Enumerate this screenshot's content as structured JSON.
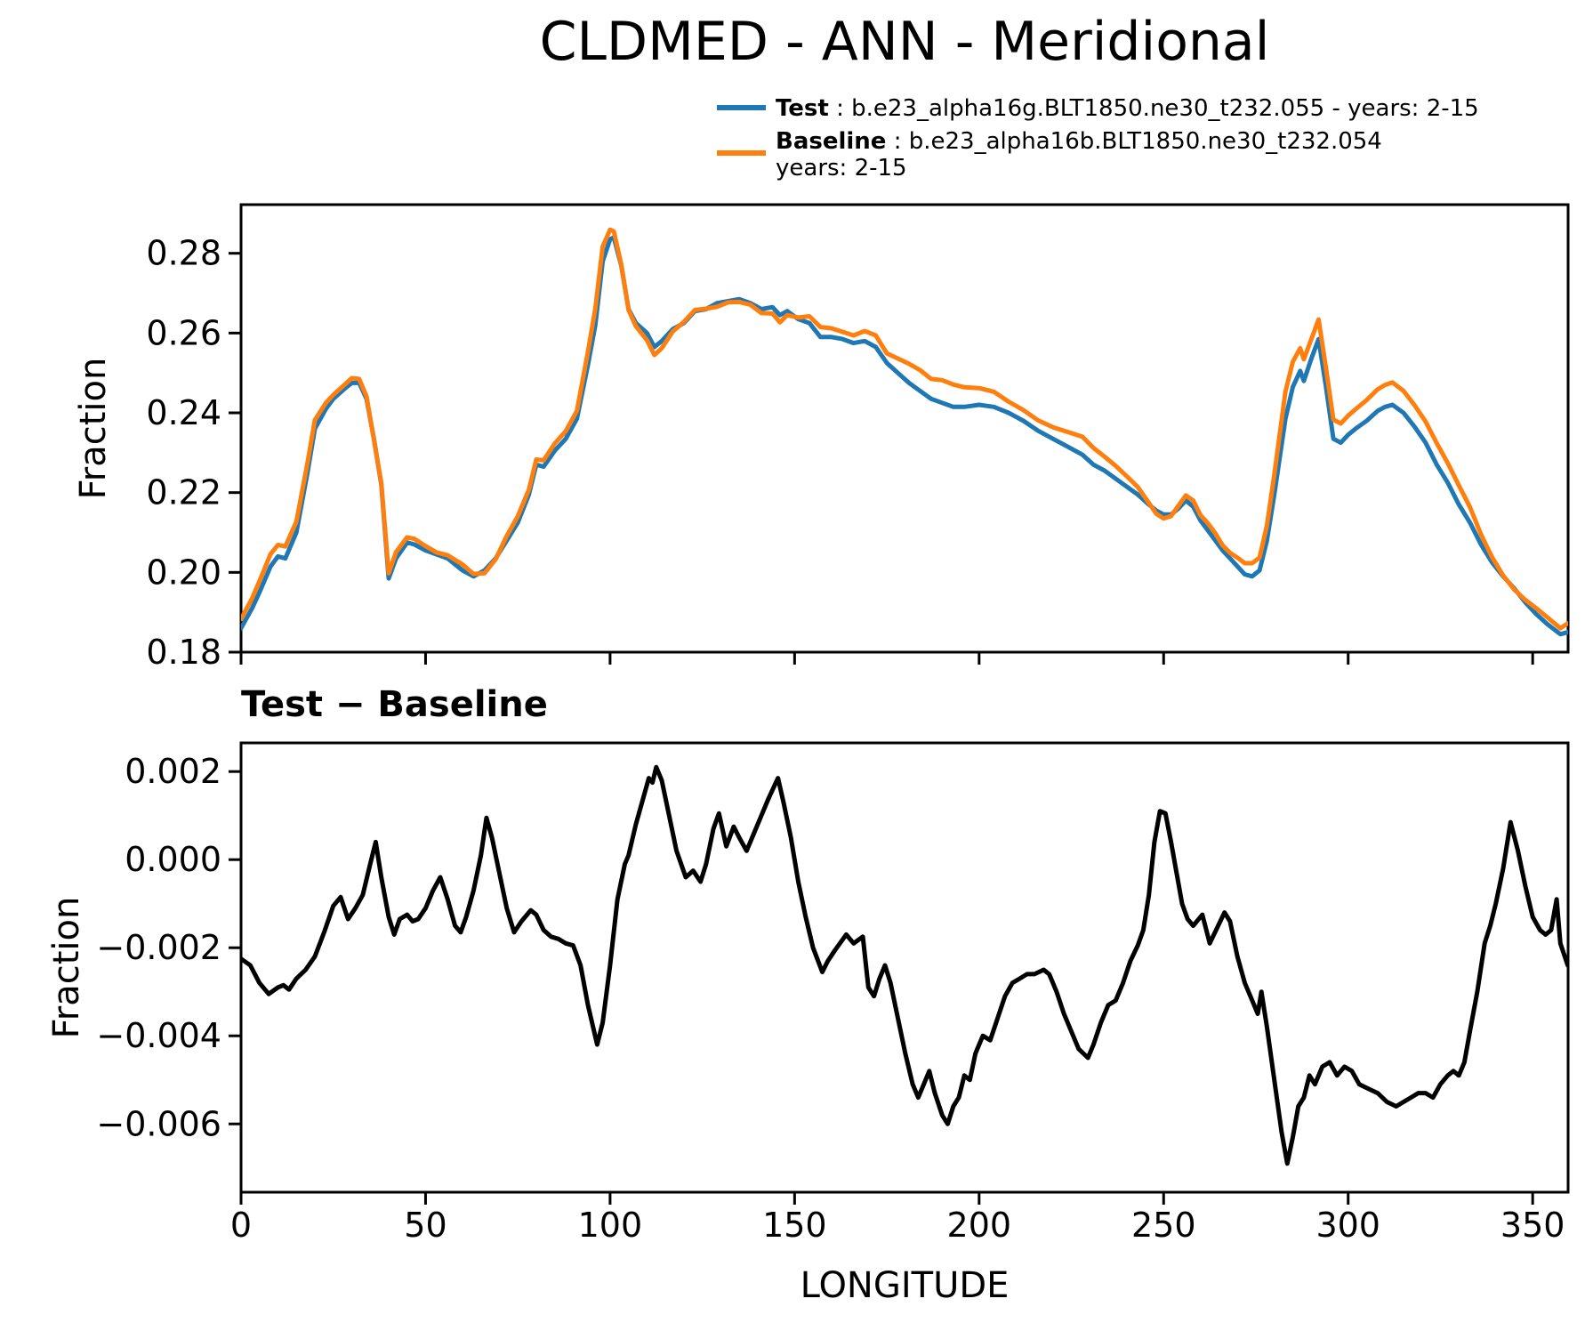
{
  "title": "CLDMED - ANN - Meridional",
  "legend": {
    "test": {
      "label": "Test",
      "desc": " : b.e23_alpha16g.BLT1850.ne30_t232.055 - years: 2-15"
    },
    "baseline": {
      "label": "Baseline",
      "desc": " : b.e23_alpha16b.BLT1850.ne30_t232.054",
      "desc2": "years: 2-15"
    }
  },
  "colors": {
    "test": "#1f77b4",
    "baseline": "#ff7f0e",
    "diff": "#000000",
    "axes": "#000000"
  },
  "chart_data": [
    {
      "type": "line",
      "panel": "top",
      "title": "CLDMED - ANN - Meridional",
      "ylabel": "Fraction",
      "xlabel": "",
      "xlim": [
        0,
        359.6
      ],
      "ylim": [
        0.18,
        0.2922
      ],
      "grid": false,
      "legend_position": "upper right, frameless",
      "yticks": [
        0.18,
        0.2,
        0.22,
        0.24,
        0.26,
        0.28
      ],
      "ytick_labels": [
        "0.18",
        "0.20",
        "0.22",
        "0.24",
        "0.26",
        "0.28"
      ],
      "xticks": [
        0,
        50,
        100,
        150,
        200,
        250,
        300,
        350
      ],
      "xtick_labels": [
        "",
        "",
        "",
        "",
        "",
        "",
        "",
        ""
      ],
      "x": [
        0,
        3,
        5,
        8,
        10,
        12,
        15,
        18,
        20,
        23,
        25,
        28,
        30,
        32,
        34,
        36,
        38,
        40,
        42,
        45,
        47,
        50,
        53,
        56,
        60,
        63,
        66,
        69,
        72,
        75,
        78,
        80,
        82,
        85,
        88,
        91,
        94,
        96,
        98,
        100,
        101,
        103,
        105,
        107,
        110,
        112,
        114,
        117,
        120,
        123,
        126,
        129,
        132,
        135,
        138,
        141,
        144,
        146,
        148,
        151,
        154,
        157,
        160,
        163,
        166,
        169,
        172,
        175,
        178,
        181,
        184,
        187,
        190,
        193,
        196,
        200,
        204,
        208,
        212,
        216,
        220,
        224,
        228,
        231,
        234,
        237,
        240,
        243,
        246,
        248,
        250,
        252,
        254,
        256,
        258,
        260,
        262,
        264,
        266,
        268,
        270,
        272,
        274,
        276,
        278,
        280,
        283,
        285,
        287,
        288,
        290,
        292,
        294,
        296,
        298,
        300,
        302,
        305,
        308,
        310,
        312,
        315,
        318,
        321,
        324,
        327,
        330,
        333,
        336,
        339,
        342,
        345,
        348,
        351,
        354,
        357.5,
        359.5
      ],
      "series": [
        {
          "name": "Test",
          "color": "#1f77b4",
          "values": [
            0.186,
            0.191,
            0.195,
            0.2015,
            0.204,
            0.2035,
            0.21,
            0.225,
            0.236,
            0.241,
            0.2435,
            0.246,
            0.2475,
            0.2475,
            0.2435,
            0.2335,
            0.222,
            0.1985,
            0.2035,
            0.2075,
            0.207,
            0.2055,
            0.2045,
            0.2035,
            0.2005,
            0.199,
            0.2005,
            0.2035,
            0.208,
            0.2125,
            0.2195,
            0.227,
            0.2265,
            0.2305,
            0.2335,
            0.2385,
            0.252,
            0.262,
            0.278,
            0.2835,
            0.284,
            0.277,
            0.266,
            0.2625,
            0.26,
            0.2565,
            0.258,
            0.261,
            0.2625,
            0.2655,
            0.266,
            0.2675,
            0.268,
            0.2685,
            0.2675,
            0.266,
            0.2665,
            0.2645,
            0.2655,
            0.2635,
            0.2625,
            0.259,
            0.259,
            0.2585,
            0.2575,
            0.258,
            0.2565,
            0.2525,
            0.25,
            0.2475,
            0.2455,
            0.2435,
            0.2425,
            0.2415,
            0.2415,
            0.242,
            0.2415,
            0.24,
            0.238,
            0.2355,
            0.2335,
            0.2315,
            0.2295,
            0.227,
            0.2255,
            0.2235,
            0.2215,
            0.2195,
            0.217,
            0.2155,
            0.2145,
            0.2145,
            0.216,
            0.218,
            0.2165,
            0.213,
            0.2105,
            0.208,
            0.2055,
            0.2035,
            0.2015,
            0.1995,
            0.199,
            0.2005,
            0.208,
            0.2195,
            0.2385,
            0.2465,
            0.2505,
            0.248,
            0.2535,
            0.2585,
            0.2465,
            0.2335,
            0.2325,
            0.2345,
            0.236,
            0.238,
            0.2405,
            0.2415,
            0.242,
            0.24,
            0.2365,
            0.2325,
            0.227,
            0.2225,
            0.217,
            0.2125,
            0.207,
            0.2025,
            0.199,
            0.196,
            0.1925,
            0.1895,
            0.187,
            0.1845,
            0.185
          ]
        },
        {
          "name": "Baseline",
          "color": "#ff7f0e",
          "values": [
            0.1883,
            0.1935,
            0.1978,
            0.2046,
            0.2069,
            0.2065,
            0.2127,
            0.2274,
            0.2382,
            0.2425,
            0.2445,
            0.247,
            0.2487,
            0.2485,
            0.2441,
            0.2332,
            0.2224,
            0.1998,
            0.2051,
            0.2088,
            0.2084,
            0.2066,
            0.205,
            0.2043,
            0.202,
            0.1996,
            0.1998,
            0.2033,
            0.2091,
            0.2141,
            0.2207,
            0.2283,
            0.2281,
            0.2323,
            0.2354,
            0.2405,
            0.2553,
            0.2661,
            0.2817,
            0.2859,
            0.2855,
            0.2773,
            0.2658,
            0.2617,
            0.2582,
            0.2545,
            0.2562,
            0.2604,
            0.2628,
            0.2658,
            0.2661,
            0.2666,
            0.2677,
            0.2678,
            0.2671,
            0.265,
            0.2649,
            0.2627,
            0.2645,
            0.2639,
            0.2642,
            0.2615,
            0.2612,
            0.2603,
            0.2594,
            0.2605,
            0.2594,
            0.2549,
            0.2536,
            0.2523,
            0.2507,
            0.2485,
            0.2482,
            0.2471,
            0.2464,
            0.2462,
            0.2453,
            0.2428,
            0.2407,
            0.2381,
            0.2364,
            0.2352,
            0.234,
            0.2312,
            0.229,
            0.2267,
            0.2241,
            0.2214,
            0.2174,
            0.2147,
            0.2135,
            0.2141,
            0.2167,
            0.2193,
            0.218,
            0.2143,
            0.2123,
            0.2098,
            0.2068,
            0.2049,
            0.2037,
            0.2023,
            0.2023,
            0.2037,
            0.2118,
            0.2245,
            0.2453,
            0.2528,
            0.2562,
            0.2534,
            0.2584,
            0.2634,
            0.2512,
            0.2383,
            0.2373,
            0.2393,
            0.2409,
            0.2432,
            0.2459,
            0.247,
            0.2476,
            0.2455,
            0.2419,
            0.2378,
            0.2324,
            0.2274,
            0.2218,
            0.2164,
            0.2095,
            0.2038,
            0.1992,
            0.1957,
            0.1931,
            0.191,
            0.1887,
            0.186,
            0.1872
          ]
        }
      ]
    },
    {
      "type": "line",
      "panel": "bottom",
      "title": "Test − Baseline",
      "ylabel": "Fraction",
      "xlabel": "LONGITUDE",
      "xlim": [
        0,
        359.6
      ],
      "ylim": [
        -0.00755,
        0.00265
      ],
      "grid": false,
      "yticks": [
        0.002,
        0.0,
        -0.002,
        -0.004,
        -0.006
      ],
      "ytick_labels": [
        "0.002",
        "0.000",
        "−0.002",
        "−0.004",
        "−0.006"
      ],
      "xticks": [
        0,
        50,
        100,
        150,
        200,
        250,
        300,
        350
      ],
      "xtick_labels": [
        "0",
        "50",
        "100",
        "150",
        "200",
        "250",
        "300",
        "350"
      ],
      "x": [
        0,
        2.5,
        5,
        7.5,
        10,
        11.5,
        13,
        15,
        17.5,
        20,
        22.5,
        25,
        27,
        29,
        31,
        33,
        35,
        36.5,
        38,
        40,
        41.5,
        43,
        45,
        46.5,
        48,
        50,
        52,
        54,
        56,
        58,
        59.5,
        61,
        63,
        65,
        66.5,
        68,
        70,
        72,
        74,
        76,
        78.5,
        80,
        82,
        84,
        86,
        88,
        90,
        92,
        94,
        96.5,
        98,
        100,
        102,
        104,
        105,
        107,
        109,
        110.5,
        111.5,
        112.5,
        114,
        116,
        118,
        120.5,
        122.5,
        124.5,
        126,
        128,
        129.5,
        131.5,
        133.5,
        135,
        137,
        139,
        141,
        143,
        145.5,
        147,
        149,
        151,
        153,
        155,
        157.5,
        159,
        161,
        164,
        166,
        168.5,
        170,
        171.5,
        173,
        174.5,
        176,
        178,
        180,
        182,
        183.5,
        185,
        186.5,
        188,
        190,
        191.5,
        193,
        194.5,
        196,
        197.5,
        199,
        201,
        203,
        205,
        207,
        209,
        211,
        213,
        215,
        217.5,
        219,
        221,
        223,
        225,
        227,
        229.5,
        231,
        233,
        235,
        237,
        239,
        241,
        243,
        244.5,
        246,
        247.5,
        249,
        250.5,
        252,
        253.5,
        255,
        256.5,
        258,
        260.5,
        262.5,
        264.5,
        266.5,
        268,
        270,
        272,
        273.5,
        275.5,
        276.5,
        278,
        280,
        282,
        283.5,
        285,
        286.5,
        288,
        289.5,
        291,
        293,
        295,
        297,
        299,
        301,
        303,
        305.5,
        308,
        310.5,
        313,
        315,
        317,
        319,
        321,
        323,
        325,
        327,
        328.5,
        330,
        331.5,
        333,
        335,
        337,
        338.5,
        340,
        342,
        344,
        346,
        348,
        350,
        352,
        353.5,
        355,
        356.5,
        357.5,
        359.5
      ],
      "series": [
        {
          "name": "Test − Baseline",
          "color": "#000000",
          "values": [
            -0.00225,
            -0.0024,
            -0.0028,
            -0.00305,
            -0.0029,
            -0.00285,
            -0.00295,
            -0.0027,
            -0.0025,
            -0.0022,
            -0.00165,
            -0.00105,
            -0.00085,
            -0.00135,
            -0.0011,
            -0.0008,
            -0.0001,
            0.0004,
            -0.0004,
            -0.0013,
            -0.0017,
            -0.00135,
            -0.00125,
            -0.0014,
            -0.00135,
            -0.0011,
            -0.0007,
            -0.0004,
            -0.0009,
            -0.0015,
            -0.00165,
            -0.0013,
            -0.0007,
            0.0001,
            0.00095,
            0.0005,
            -0.0003,
            -0.0011,
            -0.00165,
            -0.0014,
            -0.00115,
            -0.00125,
            -0.0016,
            -0.00175,
            -0.0018,
            -0.0019,
            -0.00195,
            -0.0024,
            -0.0033,
            -0.0042,
            -0.0037,
            -0.0024,
            -0.0009,
            -0.0001,
            0.0001,
            0.0008,
            0.0014,
            0.00185,
            0.00175,
            0.0021,
            0.0018,
            0.001,
            0.0002,
            -0.0004,
            -0.00025,
            -0.0005,
            -0.0001,
            0.0007,
            0.00105,
            0.0003,
            0.00075,
            0.0005,
            0.0002,
            0.0006,
            0.001,
            0.0014,
            0.00185,
            0.0013,
            0.0005,
            -0.0005,
            -0.0013,
            -0.002,
            -0.00255,
            -0.0023,
            -0.00205,
            -0.0017,
            -0.0019,
            -0.00175,
            -0.0029,
            -0.0031,
            -0.0027,
            -0.0024,
            -0.0028,
            -0.0036,
            -0.0044,
            -0.0051,
            -0.0054,
            -0.0051,
            -0.0048,
            -0.0053,
            -0.0058,
            -0.006,
            -0.0056,
            -0.0054,
            -0.0049,
            -0.005,
            -0.0044,
            -0.004,
            -0.0041,
            -0.0036,
            -0.0031,
            -0.0028,
            -0.0027,
            -0.0026,
            -0.0026,
            -0.0025,
            -0.0026,
            -0.003,
            -0.0035,
            -0.0039,
            -0.0043,
            -0.0045,
            -0.0042,
            -0.0037,
            -0.0033,
            -0.0032,
            -0.0028,
            -0.0023,
            -0.00195,
            -0.0016,
            -0.0008,
            0.0004,
            0.0011,
            0.00105,
            0.0004,
            -0.0003,
            -0.001,
            -0.00135,
            -0.0015,
            -0.00125,
            -0.0019,
            -0.00155,
            -0.0012,
            -0.0014,
            -0.0022,
            -0.0028,
            -0.0031,
            -0.0035,
            -0.003,
            -0.0038,
            -0.005,
            -0.0062,
            -0.0069,
            -0.0063,
            -0.0056,
            -0.0054,
            -0.0049,
            -0.0051,
            -0.0047,
            -0.0046,
            -0.0049,
            -0.0047,
            -0.0048,
            -0.0051,
            -0.0052,
            -0.0053,
            -0.0055,
            -0.0056,
            -0.0055,
            -0.0054,
            -0.0053,
            -0.0053,
            -0.0054,
            -0.0051,
            -0.0049,
            -0.0048,
            -0.0049,
            -0.0046,
            -0.0039,
            -0.003,
            -0.0019,
            -0.0015,
            -0.001,
            -0.0002,
            0.00085,
            0.0002,
            -0.0006,
            -0.0013,
            -0.0016,
            -0.0017,
            -0.0016,
            -0.0009,
            -0.0019,
            -0.0024
          ]
        }
      ]
    }
  ]
}
